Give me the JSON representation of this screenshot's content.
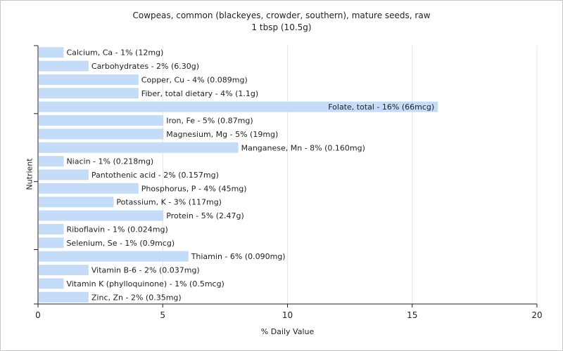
{
  "chart_data": {
    "type": "bar",
    "orientation": "horizontal",
    "title": "Cowpeas, common (blackeyes, crowder, southern), mature seeds, raw",
    "subtitle": "1 tbsp (10.5g)",
    "xlabel": "% Daily Value",
    "ylabel": "Nutrient",
    "xlim": [
      0,
      20
    ],
    "xticks": [
      "0",
      "5",
      "10",
      "15",
      "20"
    ],
    "grid": true,
    "bar_color": "#c5dcf8",
    "categories": [
      "Calcium, Ca",
      "Carbohydrates",
      "Copper, Cu",
      "Fiber, total dietary",
      "Folate, total",
      "Iron, Fe",
      "Magnesium, Mg",
      "Manganese, Mn",
      "Niacin",
      "Pantothenic acid",
      "Phosphorus, P",
      "Potassium, K",
      "Protein",
      "Riboflavin",
      "Selenium, Se",
      "Thiamin",
      "Vitamin B-6",
      "Vitamin K (phylloquinone)",
      "Zinc, Zn"
    ],
    "values": [
      1,
      2,
      4,
      4,
      16,
      5,
      5,
      8,
      1,
      2,
      4,
      3,
      5,
      1,
      1,
      6,
      2,
      1,
      2
    ],
    "labels": [
      "Calcium, Ca - 1% (12mg)",
      "Carbohydrates - 2% (6.30g)",
      "Copper, Cu - 4% (0.089mg)",
      "Fiber, total dietary - 4% (1.1g)",
      "Folate, total - 16% (66mcg)",
      "Iron, Fe - 5% (0.87mg)",
      "Magnesium, Mg - 5% (19mg)",
      "Manganese, Mn - 8% (0.160mg)",
      "Niacin - 1% (0.218mg)",
      "Pantothenic acid - 2% (0.157mg)",
      "Phosphorus, P - 4% (45mg)",
      "Potassium, K - 3% (117mg)",
      "Protein - 5% (2.47g)",
      "Riboflavin - 1% (0.024mg)",
      "Selenium, Se - 1% (0.9mcg)",
      "Thiamin - 6% (0.090mg)",
      "Vitamin B-6 - 2% (0.037mg)",
      "Vitamin K (phylloquinone) - 1% (0.5mcg)",
      "Zinc, Zn - 2% (0.35mg)"
    ]
  }
}
